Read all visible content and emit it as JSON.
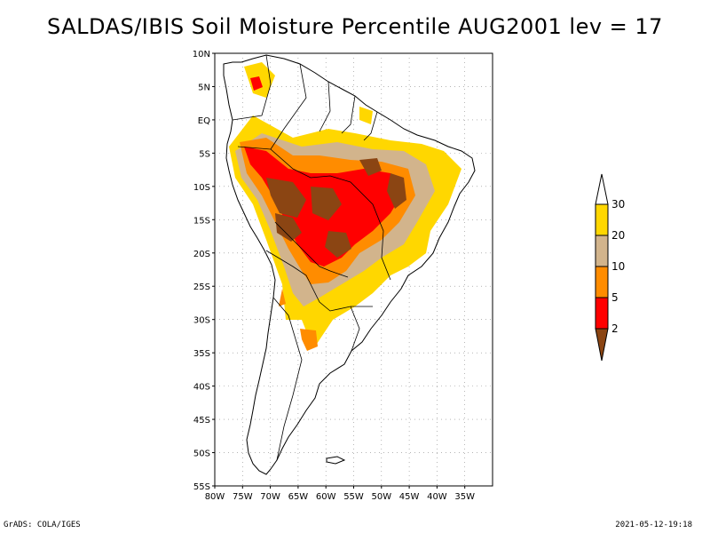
{
  "title": "SALDAS/IBIS Soil Moisture Percentile AUG2001 lev = 17",
  "footer": {
    "left": "GrADS: COLA/IGES",
    "right": "2021-05-12-19:18"
  },
  "map": {
    "region": "South America",
    "lon_range": [
      -80,
      -30
    ],
    "lat_range": [
      -55,
      10
    ],
    "lat_ticks": [
      "10N",
      "5N",
      "EQ",
      "5S",
      "10S",
      "15S",
      "20S",
      "25S",
      "30S",
      "35S",
      "40S",
      "45S",
      "50S",
      "55S"
    ],
    "lon_ticks": [
      "80W",
      "75W",
      "70W",
      "65W",
      "60W",
      "55W",
      "50W",
      "45W",
      "40W",
      "35W"
    ],
    "grid": true
  },
  "legend": {
    "bins": [
      {
        "label": "30",
        "color": "#ffffff"
      },
      {
        "label": "20",
        "color": "#ffd700"
      },
      {
        "label": "10",
        "color": "#d2b48c"
      },
      {
        "label": "5",
        "color": "#ff8c00"
      },
      {
        "label": "2",
        "color": "#ff0000"
      },
      {
        "label": "",
        "color": "#8b4513"
      }
    ]
  }
}
